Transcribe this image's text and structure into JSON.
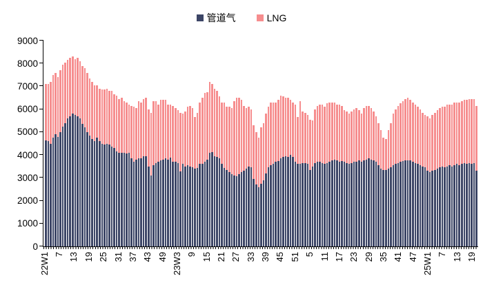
{
  "legend": {
    "items": [
      {
        "label": "管道气",
        "color": "#3C4566"
      },
      {
        "label": "LNG",
        "color": "#F68D8E"
      }
    ]
  },
  "chart_data": {
    "type": "bar",
    "stacked": true,
    "grid": false,
    "legend_position": "top",
    "ylim": [
      0,
      9000
    ],
    "yticks": [
      0,
      1000,
      2000,
      3000,
      4000,
      5000,
      6000,
      7000,
      8000,
      9000
    ],
    "xtick_every": 6,
    "xtick_labels": [
      "22W1",
      "7",
      "13",
      "19",
      "25",
      "31",
      "37",
      "43",
      "49",
      "23W3",
      "9",
      "15",
      "21",
      "27",
      "33",
      "39",
      "45",
      "51",
      "5",
      "11",
      "17",
      "23",
      "29",
      "35",
      "41",
      "47",
      "25W1",
      "7",
      "13",
      "19"
    ],
    "x": [
      "22W1",
      "22W2",
      "22W3",
      "22W4",
      "22W5",
      "22W6",
      "22W7",
      "22W8",
      "22W9",
      "22W10",
      "22W11",
      "22W12",
      "22W13",
      "22W14",
      "22W15",
      "22W16",
      "22W17",
      "22W18",
      "22W19",
      "22W20",
      "22W21",
      "22W22",
      "22W23",
      "22W24",
      "22W25",
      "22W26",
      "22W27",
      "22W28",
      "22W29",
      "22W30",
      "22W31",
      "22W32",
      "22W33",
      "22W34",
      "22W35",
      "22W36",
      "22W37",
      "22W38",
      "22W39",
      "22W40",
      "22W41",
      "22W42",
      "22W43",
      "22W44",
      "22W45",
      "22W46",
      "22W47",
      "22W48",
      "22W49",
      "22W50",
      "22W51",
      "22W52",
      "23W1",
      "23W2",
      "23W3",
      "23W4",
      "23W5",
      "23W6",
      "23W7",
      "23W8",
      "23W9",
      "23W10",
      "23W11",
      "23W12",
      "23W13",
      "23W14",
      "23W15",
      "23W16",
      "23W17",
      "23W18",
      "23W19",
      "23W20",
      "23W21",
      "23W22",
      "23W23",
      "23W24",
      "23W25",
      "23W26",
      "23W27",
      "23W28",
      "23W29",
      "23W30",
      "23W31",
      "23W32",
      "23W33",
      "23W34",
      "23W35",
      "23W36",
      "23W37",
      "23W38",
      "23W39",
      "23W40",
      "23W41",
      "23W42",
      "23W43",
      "23W44",
      "23W45",
      "23W46",
      "23W47",
      "23W48",
      "23W49",
      "23W50",
      "23W51",
      "23W52",
      "24W1",
      "24W2",
      "24W3",
      "24W4",
      "24W5",
      "24W6",
      "24W7",
      "24W8",
      "24W9",
      "24W10",
      "24W11",
      "24W12",
      "24W13",
      "24W14",
      "24W15",
      "24W16",
      "24W17",
      "24W18",
      "24W19",
      "24W20",
      "24W21",
      "24W22",
      "24W23",
      "24W24",
      "24W25",
      "24W26",
      "24W27",
      "24W28",
      "24W29",
      "24W30",
      "24W31",
      "24W32",
      "24W33",
      "24W34",
      "24W35",
      "24W36",
      "24W37",
      "24W38",
      "24W39",
      "24W40",
      "24W41",
      "24W42",
      "24W43",
      "24W44",
      "24W45",
      "24W46",
      "24W47",
      "24W48",
      "24W49",
      "24W50",
      "24W51",
      "24W52",
      "25W1",
      "25W2",
      "25W3",
      "25W4",
      "25W5",
      "25W6",
      "25W7",
      "25W8",
      "25W9",
      "25W10",
      "25W11",
      "25W12",
      "25W13",
      "25W14",
      "25W15",
      "25W16",
      "25W17",
      "25W18",
      "25W19",
      "25W20",
      "25W21"
    ],
    "series": [
      {
        "name": "管道气",
        "color": "#3C4566",
        "values": [
          4650,
          4600,
          4500,
          4750,
          4900,
          4800,
          5000,
          5250,
          5400,
          5600,
          5700,
          5800,
          5750,
          5700,
          5600,
          5350,
          5200,
          5000,
          4850,
          4700,
          4600,
          4750,
          4600,
          4500,
          4450,
          4500,
          4450,
          4350,
          4300,
          4150,
          4100,
          4100,
          4100,
          4050,
          4100,
          3850,
          3700,
          3800,
          3850,
          3850,
          3950,
          3950,
          3500,
          3100,
          3550,
          3650,
          3700,
          3750,
          3800,
          3850,
          3800,
          3870,
          3700,
          3700,
          3650,
          3280,
          3600,
          3500,
          3550,
          3500,
          3450,
          3400,
          3420,
          3600,
          3620,
          3700,
          3800,
          4080,
          4120,
          3950,
          3900,
          3850,
          3600,
          3420,
          3350,
          3250,
          3150,
          3100,
          3080,
          3160,
          3250,
          3300,
          3400,
          3500,
          3450,
          2950,
          2700,
          2600,
          2750,
          2900,
          3200,
          3450,
          3550,
          3600,
          3700,
          3720,
          3850,
          3900,
          3950,
          3900,
          4000,
          3900,
          3700,
          3600,
          3600,
          3650,
          3650,
          3600,
          3350,
          3500,
          3650,
          3700,
          3700,
          3650,
          3600,
          3650,
          3700,
          3750,
          3800,
          3750,
          3700,
          3720,
          3700,
          3650,
          3600,
          3650,
          3700,
          3700,
          3750,
          3700,
          3750,
          3800,
          3850,
          3800,
          3750,
          3700,
          3550,
          3400,
          3350,
          3350,
          3400,
          3450,
          3550,
          3600,
          3650,
          3700,
          3720,
          3750,
          3770,
          3750,
          3700,
          3650,
          3600,
          3550,
          3500,
          3450,
          3300,
          3250,
          3300,
          3350,
          3400,
          3450,
          3500,
          3450,
          3500,
          3550,
          3500,
          3550,
          3600,
          3550,
          3600,
          3650,
          3600,
          3650,
          3600,
          3650,
          3300
        ]
      },
      {
        "name": "LNG",
        "color": "#F68D8E",
        "values": [
          2450,
          2500,
          2700,
          2750,
          2700,
          2600,
          2700,
          2700,
          2650,
          2550,
          2550,
          2500,
          2450,
          2550,
          2500,
          2550,
          2600,
          2600,
          2500,
          2500,
          2450,
          2300,
          2300,
          2350,
          2400,
          2400,
          2350,
          2450,
          2350,
          2450,
          2350,
          2400,
          2250,
          2250,
          2100,
          2300,
          2400,
          2250,
          2500,
          2450,
          2500,
          2550,
          2500,
          2750,
          2800,
          2700,
          2500,
          2650,
          2600,
          2550,
          2400,
          2330,
          2450,
          2350,
          2300,
          2550,
          2200,
          2400,
          2550,
          2650,
          2600,
          2250,
          2430,
          2700,
          2880,
          3000,
          2950,
          3100,
          2980,
          2950,
          2900,
          2700,
          2700,
          2880,
          2750,
          2850,
          2900,
          3250,
          3420,
          3340,
          3150,
          2850,
          2650,
          2600,
          2550,
          2350,
          2300,
          2150,
          2450,
          2500,
          2600,
          2650,
          2750,
          2700,
          2600,
          2680,
          2750,
          2650,
          2550,
          2600,
          2400,
          2400,
          2500,
          2050,
          2750,
          2250,
          2200,
          2150,
          2200,
          2000,
          2350,
          2450,
          2500,
          2550,
          2500,
          2600,
          2600,
          2550,
          2500,
          2450,
          2500,
          2430,
          2250,
          2250,
          2200,
          2250,
          2300,
          2350,
          2200,
          2100,
          2300,
          2350,
          2300,
          2250,
          2150,
          2000,
          1850,
          1700,
          1400,
          1350,
          1700,
          1950,
          2250,
          2400,
          2500,
          2550,
          2630,
          2700,
          2730,
          2650,
          2600,
          2550,
          2500,
          2450,
          2350,
          2300,
          2400,
          2350,
          2450,
          2500,
          2550,
          2600,
          2600,
          2650,
          2700,
          2650,
          2700,
          2750,
          2700,
          2750,
          2750,
          2750,
          2800,
          2800,
          2850,
          2800,
          2850
        ]
      }
    ]
  }
}
